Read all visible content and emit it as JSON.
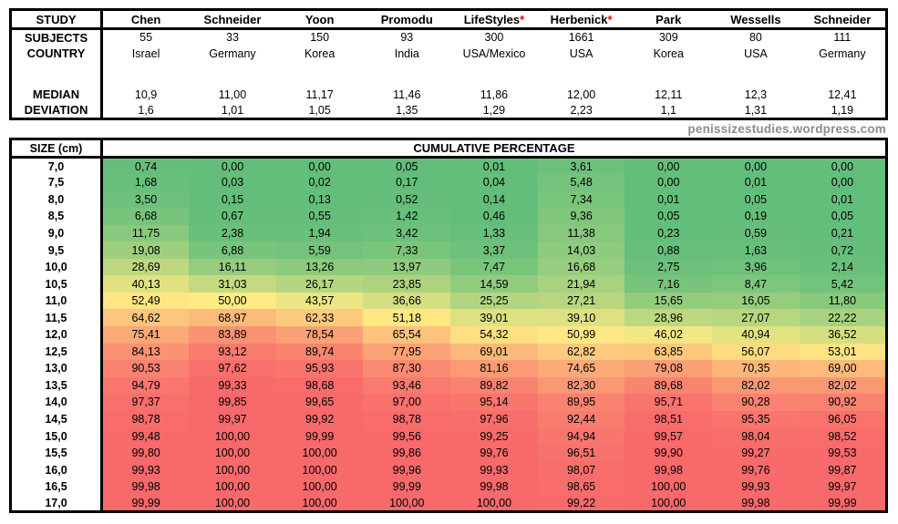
{
  "header": {
    "corner": "STUDY",
    "row_labels": {
      "subjects": "SUBJECTS",
      "country": "COUNTRY",
      "median": "MEDIAN",
      "deviation": "DEVIATION"
    }
  },
  "studies": [
    {
      "name": "Chen",
      "mark": "",
      "subjects": "55",
      "country": "Israel",
      "median": "10,9",
      "deviation": "1,6"
    },
    {
      "name": "Schneider",
      "mark": "",
      "subjects": "33",
      "country": "Germany",
      "median": "11,00",
      "deviation": "1,01"
    },
    {
      "name": "Yoon",
      "mark": "",
      "subjects": "150",
      "country": "Korea",
      "median": "11,17",
      "deviation": "1,05"
    },
    {
      "name": "Promodu",
      "mark": "",
      "subjects": "93",
      "country": "India",
      "median": "11,46",
      "deviation": "1,35"
    },
    {
      "name": "LifeStyles",
      "mark": "*",
      "subjects": "300",
      "country": "USA/Mexico",
      "median": "11,86",
      "deviation": "1,29"
    },
    {
      "name": "Herbenick",
      "mark": "*",
      "subjects": "1661",
      "country": "USA",
      "median": "12,00",
      "deviation": "2,23"
    },
    {
      "name": "Park",
      "mark": "",
      "subjects": "309",
      "country": "Korea",
      "median": "12,11",
      "deviation": "1,1"
    },
    {
      "name": "Wessells",
      "mark": "",
      "subjects": "80",
      "country": "USA",
      "median": "12,3",
      "deviation": "1,31"
    },
    {
      "name": "Schneider",
      "mark": "",
      "subjects": "111",
      "country": "Germany",
      "median": "12,41",
      "deviation": "1,19"
    }
  ],
  "watermark": "penissizestudies.wordpress.com",
  "heatmap_header": {
    "size": "SIZE (cm)",
    "title": "CUMULATIVE PERCENTAGE"
  },
  "colors": {
    "scale_low": "#63BE7B",
    "scale_mid": "#FFEB84",
    "scale_high": "#F8696B",
    "asterisk": "#FF0000",
    "watermark": "#8C8C8C",
    "text": "#000000",
    "border": "#000000"
  },
  "chart_data": {
    "type": "heatmap",
    "title": "CUMULATIVE PERCENTAGE",
    "xlabel": "STUDY",
    "ylabel": "SIZE (cm)",
    "columns": [
      "Chen",
      "Schneider",
      "Yoon",
      "Promodu",
      "LifeStyles",
      "Herbenick",
      "Park",
      "Wessells",
      "Schneider"
    ],
    "subjects": [
      55,
      33,
      150,
      93,
      300,
      1661,
      309,
      80,
      111
    ],
    "countries": [
      "Israel",
      "Germany",
      "Korea",
      "India",
      "USA/Mexico",
      "USA",
      "Korea",
      "USA",
      "Germany"
    ],
    "medians_cm": [
      10.9,
      11.0,
      11.17,
      11.46,
      11.86,
      12.0,
      12.11,
      12.3,
      12.41
    ],
    "deviations_cm": [
      1.6,
      1.01,
      1.05,
      1.35,
      1.29,
      2.23,
      1.1,
      1.31,
      1.19
    ],
    "sizes_cm": [
      7.0,
      7.5,
      8.0,
      8.5,
      9.0,
      9.5,
      10.0,
      10.5,
      11.0,
      11.5,
      12.0,
      12.5,
      13.0,
      13.5,
      14.0,
      14.5,
      15.0,
      15.5,
      16.0,
      16.5,
      17.0
    ],
    "values": [
      [
        0.74,
        0.0,
        0.0,
        0.05,
        0.01,
        3.61,
        0.0,
        0.0,
        0.0
      ],
      [
        1.68,
        0.03,
        0.02,
        0.17,
        0.04,
        5.48,
        0.0,
        0.01,
        0.0
      ],
      [
        3.5,
        0.15,
        0.13,
        0.52,
        0.14,
        7.34,
        0.01,
        0.05,
        0.01
      ],
      [
        6.68,
        0.67,
        0.55,
        1.42,
        0.46,
        9.36,
        0.05,
        0.19,
        0.05
      ],
      [
        11.75,
        2.38,
        1.94,
        3.42,
        1.33,
        11.38,
        0.23,
        0.59,
        0.21
      ],
      [
        19.08,
        6.88,
        5.59,
        7.33,
        3.37,
        14.03,
        0.88,
        1.63,
        0.72
      ],
      [
        28.69,
        16.11,
        13.26,
        13.97,
        7.47,
        16.68,
        2.75,
        3.96,
        2.14
      ],
      [
        40.13,
        31.03,
        26.17,
        23.85,
        14.59,
        21.94,
        7.16,
        8.47,
        5.42
      ],
      [
        52.49,
        50.0,
        43.57,
        36.66,
        25.25,
        27.21,
        15.65,
        16.05,
        11.8
      ],
      [
        64.62,
        68.97,
        62.33,
        51.18,
        39.01,
        39.1,
        28.96,
        27.07,
        22.22
      ],
      [
        75.41,
        83.89,
        78.54,
        65.54,
        54.32,
        50.99,
        46.02,
        40.94,
        36.52
      ],
      [
        84.13,
        93.12,
        89.74,
        77.95,
        69.01,
        62.82,
        63.85,
        56.07,
        53.01
      ],
      [
        90.53,
        97.62,
        95.93,
        87.3,
        81.16,
        74.65,
        79.08,
        70.35,
        69.0
      ],
      [
        94.79,
        99.33,
        98.68,
        93.46,
        89.82,
        82.3,
        89.68,
        82.02,
        82.02
      ],
      [
        97.37,
        99.85,
        99.65,
        97.0,
        95.14,
        89.95,
        95.71,
        90.28,
        90.92
      ],
      [
        98.78,
        99.97,
        99.92,
        98.78,
        97.96,
        92.44,
        98.51,
        95.35,
        96.05
      ],
      [
        99.48,
        100.0,
        99.99,
        99.56,
        99.25,
        94.94,
        99.57,
        98.04,
        98.52
      ],
      [
        99.8,
        100.0,
        100.0,
        99.86,
        99.76,
        96.51,
        99.9,
        99.27,
        99.53
      ],
      [
        99.93,
        100.0,
        100.0,
        99.96,
        99.93,
        98.07,
        99.98,
        99.76,
        99.87
      ],
      [
        99.98,
        100.0,
        100.0,
        99.99,
        99.98,
        98.65,
        100.0,
        99.93,
        99.97
      ],
      [
        99.99,
        100.0,
        100.0,
        100.0,
        100.0,
        99.22,
        100.0,
        99.98,
        99.99
      ]
    ],
    "color_scale": {
      "min_value": 0,
      "mid_value": 50,
      "max_value": 100,
      "low": "#63BE7B",
      "mid": "#FFEB84",
      "high": "#F8696B"
    },
    "grid": false,
    "legend": "none",
    "value_format": "comma-decimal, 2 places"
  }
}
